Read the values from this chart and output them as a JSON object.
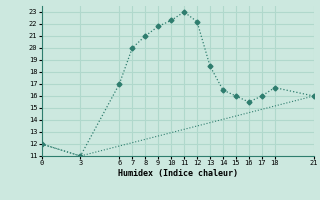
{
  "xlabel": "Humidex (Indice chaleur)",
  "bg_color": "#cce8df",
  "grid_color": "#b0d8cc",
  "line_color": "#2e7d6e",
  "line1_x": [
    0,
    3,
    6,
    7,
    8,
    9,
    10,
    11,
    12,
    13,
    14,
    15,
    16,
    17,
    18,
    21
  ],
  "line1_y": [
    12,
    11,
    17,
    20,
    21,
    21.8,
    22.3,
    23,
    22.2,
    18.5,
    16.5,
    16,
    15.5,
    16,
    16.7,
    16
  ],
  "line2_x": [
    0,
    3,
    21
  ],
  "line2_y": [
    12,
    11,
    16
  ],
  "xlim": [
    0,
    21
  ],
  "ylim": [
    11,
    23.5
  ],
  "xticks": [
    0,
    3,
    6,
    7,
    8,
    9,
    10,
    11,
    12,
    13,
    14,
    15,
    16,
    17,
    18,
    21
  ],
  "yticks": [
    11,
    12,
    13,
    14,
    15,
    16,
    17,
    18,
    19,
    20,
    21,
    22,
    23
  ]
}
